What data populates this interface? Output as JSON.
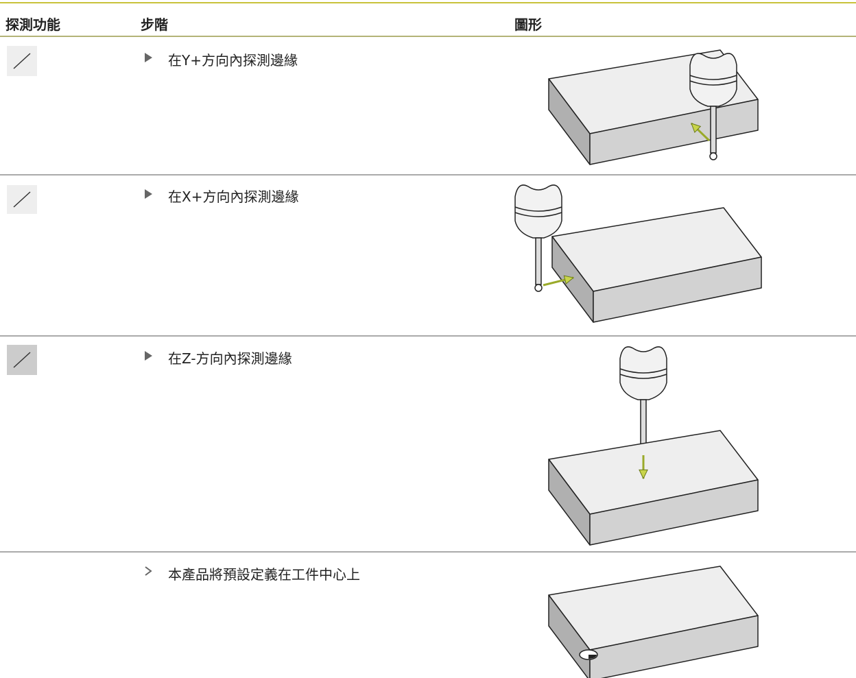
{
  "header": [
    "探測功能",
    "步階",
    "圖形"
  ],
  "rows": [
    {
      "step": "在Y+方向內探測邊緣"
    },
    {
      "step": "在X+方向內探測邊緣"
    },
    {
      "step": "在Z-方向內探測邊緣"
    },
    {
      "step": "本產品將預設定義在工件中心上"
    }
  ]
}
